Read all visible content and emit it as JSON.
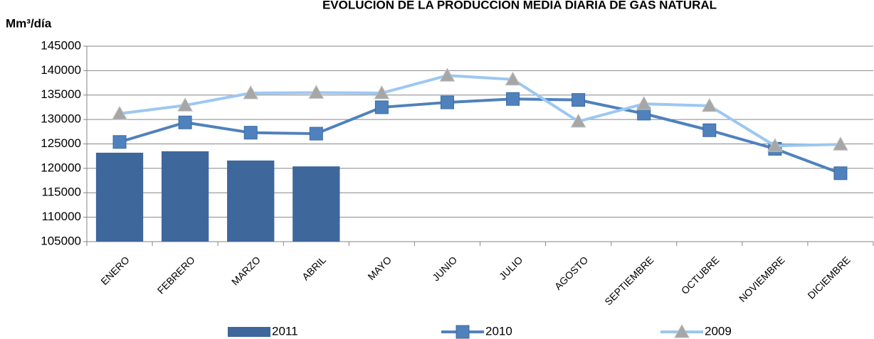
{
  "chart_data": {
    "type": "combo",
    "title": "EVOLUCIÓN DE LA PRODUCCIÓN MEDIA DIARIA DE GAS NATURAL",
    "y_label": "Mm³/día",
    "categories": [
      "ENERO",
      "FEBRERO",
      "MARZO",
      "ABRIL",
      "MAYO",
      "JUNIO",
      "JULIO",
      "AGOSTO",
      "SEPTIEMBRE",
      "OCTUBRE",
      "NOVIEMBRE",
      "DICIEMBRE"
    ],
    "series": [
      {
        "name": "2011",
        "type": "bar",
        "color": "#3e679c",
        "values": [
          123200,
          123500,
          121600,
          120400,
          null,
          null,
          null,
          null,
          null,
          null,
          null,
          null
        ]
      },
      {
        "name": "2010",
        "type": "line",
        "marker": "square",
        "color": "#4f81bd",
        "values": [
          125400,
          129400,
          127300,
          127100,
          132500,
          133500,
          134200,
          134000,
          131200,
          127800,
          124000,
          119000
        ]
      },
      {
        "name": "2009",
        "type": "line",
        "marker": "triangle",
        "color": "#9cc7f2",
        "values": [
          131200,
          132900,
          135400,
          135500,
          135400,
          139000,
          138200,
          129600,
          133200,
          132800,
          124600,
          124900
        ]
      }
    ],
    "ylim": [
      105000,
      145000
    ],
    "yticks": [
      105000,
      110000,
      115000,
      120000,
      125000,
      130000,
      135000,
      140000,
      145000
    ],
    "grid": true,
    "legend": "bottom"
  }
}
